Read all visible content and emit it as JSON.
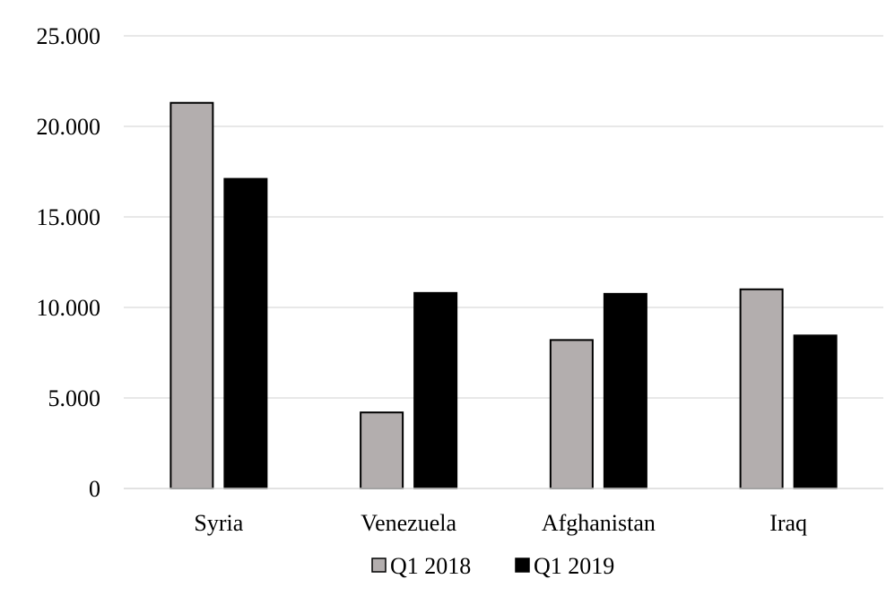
{
  "chart_data": {
    "type": "bar",
    "title": "",
    "xlabel": "",
    "ylabel": "",
    "categories": [
      "Syria",
      "Venezuela",
      "Afghanistan",
      "Iraq"
    ],
    "series": [
      {
        "name": "Q1 2018",
        "values": [
          21300,
          4200,
          8200,
          11000
        ],
        "color": "#b3aeae"
      },
      {
        "name": "Q1 2019",
        "values": [
          17100,
          10800,
          10750,
          8450
        ],
        "color": "#000000"
      }
    ],
    "ylim": [
      0,
      25000
    ],
    "yticks": [
      {
        "value": 0,
        "label": "0"
      },
      {
        "value": 5000,
        "label": "5.000"
      },
      {
        "value": 10000,
        "label": "10.000"
      },
      {
        "value": 15000,
        "label": "15.000"
      },
      {
        "value": 20000,
        "label": "20.000"
      },
      {
        "value": 25000,
        "label": "25.000"
      }
    ],
    "grid": true,
    "gridColor": "#d9d9d9",
    "legend": "bottom"
  }
}
